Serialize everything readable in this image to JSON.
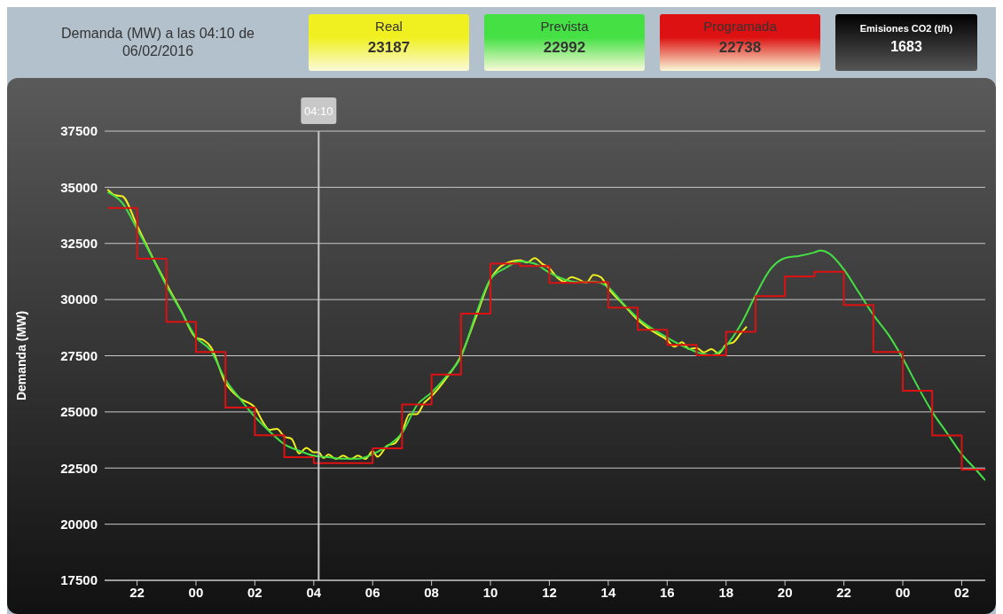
{
  "chart_data": {
    "type": "line",
    "title": "Demanda (MW) a las 04:10 de 06/02/2016",
    "ylabel": "Demanda (MW)",
    "annotations": [
      "23187",
      "22992",
      "22738",
      "Emisiones CO2 (t/h)",
      "1683"
    ],
    "legend": "top",
    "grid": "y",
    "xlim": [
      "2016-02-05T20:54",
      "2016-02-07T02:48"
    ],
    "xticks": [
      {
        "value": "2016-02-05T22:00",
        "label": "22"
      },
      {
        "value": "2016-02-06T00:00",
        "label": "00"
      },
      {
        "value": "2016-02-06T02:00",
        "label": "02"
      },
      {
        "value": "2016-02-06T04:00",
        "label": "04"
      },
      {
        "value": "2016-02-06T06:00",
        "label": "06"
      },
      {
        "value": "2016-02-06T08:00",
        "label": "08"
      },
      {
        "value": "2016-02-06T10:00",
        "label": "10"
      },
      {
        "value": "2016-02-06T12:00",
        "label": "12"
      },
      {
        "value": "2016-02-06T14:00",
        "label": "14"
      },
      {
        "value": "2016-02-06T16:00",
        "label": "16"
      },
      {
        "value": "2016-02-06T18:00",
        "label": "18"
      },
      {
        "value": "2016-02-06T20:00",
        "label": "20"
      },
      {
        "value": "2016-02-06T22:00",
        "label": "22"
      },
      {
        "value": "2016-02-07T00:00",
        "label": "00"
      },
      {
        "value": "2016-02-07T02:00",
        "label": "02"
      }
    ],
    "ylim": [
      17500,
      37500
    ],
    "yticks": [
      17500,
      20000,
      22500,
      25000,
      27500,
      30000,
      32500,
      35000,
      37500
    ],
    "ref_lines": [
      {
        "axis": "x",
        "value": "2016-02-06T04:10",
        "label": "04:10",
        "color": "#c8c8c8"
      }
    ],
    "series": [
      {
        "name": "Real",
        "color": "#f0f020",
        "x": [
          "2016-02-05T21:00",
          "2016-02-05T21:15",
          "2016-02-05T21:30",
          "2016-02-05T22:00",
          "2016-02-05T22:30",
          "2016-02-05T23:00",
          "2016-02-05T23:30",
          "2016-02-06T00:00",
          "2016-02-06T00:15",
          "2016-02-06T00:30",
          "2016-02-06T01:00",
          "2016-02-06T01:30",
          "2016-02-06T02:00",
          "2016-02-06T02:15",
          "2016-02-06T02:30",
          "2016-02-06T02:45",
          "2016-02-06T03:00",
          "2016-02-06T03:15",
          "2016-02-06T03:30",
          "2016-02-06T03:45",
          "2016-02-06T04:00",
          "2016-02-06T04:10",
          "2016-02-06T04:20",
          "2016-02-06T04:30",
          "2016-02-06T04:45",
          "2016-02-06T05:00",
          "2016-02-06T05:15",
          "2016-02-06T05:30",
          "2016-02-06T05:45",
          "2016-02-06T06:00",
          "2016-02-06T06:10",
          "2016-02-06T06:30",
          "2016-02-06T06:45",
          "2016-02-06T07:00",
          "2016-02-06T07:15",
          "2016-02-06T07:30",
          "2016-02-06T07:45",
          "2016-02-06T08:00",
          "2016-02-06T08:30",
          "2016-02-06T09:00",
          "2016-02-06T09:30",
          "2016-02-06T10:00",
          "2016-02-06T10:30",
          "2016-02-06T11:00",
          "2016-02-06T11:15",
          "2016-02-06T11:30",
          "2016-02-06T11:45",
          "2016-02-06T12:00",
          "2016-02-06T12:15",
          "2016-02-06T12:30",
          "2016-02-06T12:45",
          "2016-02-06T13:00",
          "2016-02-06T13:15",
          "2016-02-06T13:30",
          "2016-02-06T13:45",
          "2016-02-06T14:00",
          "2016-02-06T14:30",
          "2016-02-06T15:00",
          "2016-02-06T15:30",
          "2016-02-06T16:00",
          "2016-02-06T16:15",
          "2016-02-06T16:30",
          "2016-02-06T16:45",
          "2016-02-06T17:00",
          "2016-02-06T17:15",
          "2016-02-06T17:30",
          "2016-02-06T17:45",
          "2016-02-06T18:00",
          "2016-02-06T18:15",
          "2016-02-06T18:30",
          "2016-02-06T18:42"
        ],
        "values": [
          34900,
          34650,
          34600,
          33300,
          31950,
          30700,
          29500,
          28300,
          28200,
          27900,
          26300,
          25600,
          25200,
          24600,
          24200,
          24250,
          23900,
          23800,
          23150,
          23400,
          23200,
          23200,
          22950,
          23100,
          22900,
          23050,
          22900,
          23050,
          22900,
          23250,
          23000,
          23500,
          23600,
          24100,
          24900,
          24900,
          25400,
          25700,
          26500,
          27500,
          29200,
          30900,
          31600,
          31750,
          31650,
          31850,
          31600,
          31400,
          31000,
          30800,
          31000,
          30900,
          30750,
          31100,
          31000,
          30500,
          29800,
          29100,
          28600,
          28200,
          27900,
          28100,
          27800,
          27850,
          27650,
          27800,
          27600,
          28000,
          28100,
          28500,
          28800
        ]
      },
      {
        "name": "Prevista",
        "color": "#44e044",
        "x": [
          "2016-02-05T21:00",
          "2016-02-05T21:30",
          "2016-02-05T22:00",
          "2016-02-05T22:30",
          "2016-02-05T23:00",
          "2016-02-05T23:30",
          "2016-02-06T00:00",
          "2016-02-06T00:30",
          "2016-02-06T01:00",
          "2016-02-06T01:30",
          "2016-02-06T02:00",
          "2016-02-06T02:30",
          "2016-02-06T03:00",
          "2016-02-06T03:30",
          "2016-02-06T04:00",
          "2016-02-06T04:30",
          "2016-02-06T05:00",
          "2016-02-06T05:30",
          "2016-02-06T06:00",
          "2016-02-06T06:30",
          "2016-02-06T07:00",
          "2016-02-06T07:30",
          "2016-02-06T08:00",
          "2016-02-06T08:30",
          "2016-02-06T09:00",
          "2016-02-06T09:30",
          "2016-02-06T10:00",
          "2016-02-06T10:30",
          "2016-02-06T11:00",
          "2016-02-06T11:30",
          "2016-02-06T12:00",
          "2016-02-06T12:30",
          "2016-02-06T13:00",
          "2016-02-06T13:30",
          "2016-02-06T14:00",
          "2016-02-06T14:30",
          "2016-02-06T15:00",
          "2016-02-06T15:30",
          "2016-02-06T16:00",
          "2016-02-06T16:30",
          "2016-02-06T17:00",
          "2016-02-06T17:30",
          "2016-02-06T18:00",
          "2016-02-06T18:30",
          "2016-02-06T19:00",
          "2016-02-06T19:30",
          "2016-02-06T20:00",
          "2016-02-06T20:30",
          "2016-02-06T21:00",
          "2016-02-06T21:12",
          "2016-02-06T21:30",
          "2016-02-06T22:00",
          "2016-02-06T22:30",
          "2016-02-06T23:00",
          "2016-02-06T23:30",
          "2016-02-07T00:00",
          "2016-02-07T00:30",
          "2016-02-07T01:00",
          "2016-02-07T01:30",
          "2016-02-07T02:00",
          "2016-02-07T02:30",
          "2016-02-07T02:48"
        ],
        "values": [
          34780,
          34300,
          33150,
          31920,
          30620,
          29470,
          28320,
          27740,
          26440,
          25580,
          24780,
          24130,
          23560,
          23270,
          23050,
          22980,
          22910,
          22910,
          23120,
          23480,
          24060,
          25290,
          25860,
          26580,
          27450,
          29320,
          30910,
          31400,
          31700,
          31600,
          31200,
          30900,
          30770,
          30800,
          30550,
          29830,
          29180,
          28700,
          28310,
          27950,
          27670,
          27520,
          27950,
          28890,
          30190,
          31340,
          31850,
          31950,
          32100,
          32180,
          32050,
          31340,
          30330,
          29320,
          28460,
          27380,
          26150,
          25000,
          24060,
          23120,
          22400,
          21950
        ]
      },
      {
        "name": "Programada",
        "color": "#dd1111",
        "type": "step",
        "x": [
          "2016-02-05T21:00",
          "2016-02-05T22:00",
          "2016-02-05T23:00",
          "2016-02-06T00:00",
          "2016-02-06T01:00",
          "2016-02-06T02:00",
          "2016-02-06T03:00",
          "2016-02-06T04:00",
          "2016-02-06T05:00",
          "2016-02-06T06:00",
          "2016-02-06T07:00",
          "2016-02-06T08:00",
          "2016-02-06T09:00",
          "2016-02-06T10:00",
          "2016-02-06T11:00",
          "2016-02-06T12:00",
          "2016-02-06T13:00",
          "2016-02-06T14:00",
          "2016-02-06T15:00",
          "2016-02-06T16:00",
          "2016-02-06T17:00",
          "2016-02-06T18:00",
          "2016-02-06T19:00",
          "2016-02-06T20:00",
          "2016-02-06T21:00",
          "2016-02-06T22:00",
          "2016-02-06T23:00",
          "2016-02-07T00:00",
          "2016-02-07T01:00",
          "2016-02-07T02:00",
          "2016-02-07T02:48"
        ],
        "values": [
          34080,
          31820,
          29010,
          27670,
          25190,
          23960,
          22980,
          22720,
          22720,
          23380,
          25330,
          26660,
          29370,
          31600,
          31490,
          30740,
          30770,
          29640,
          28650,
          27980,
          27520,
          28570,
          30150,
          31030,
          31240,
          29760,
          27670,
          25940,
          23950,
          22430,
          22430
        ]
      }
    ]
  }
}
